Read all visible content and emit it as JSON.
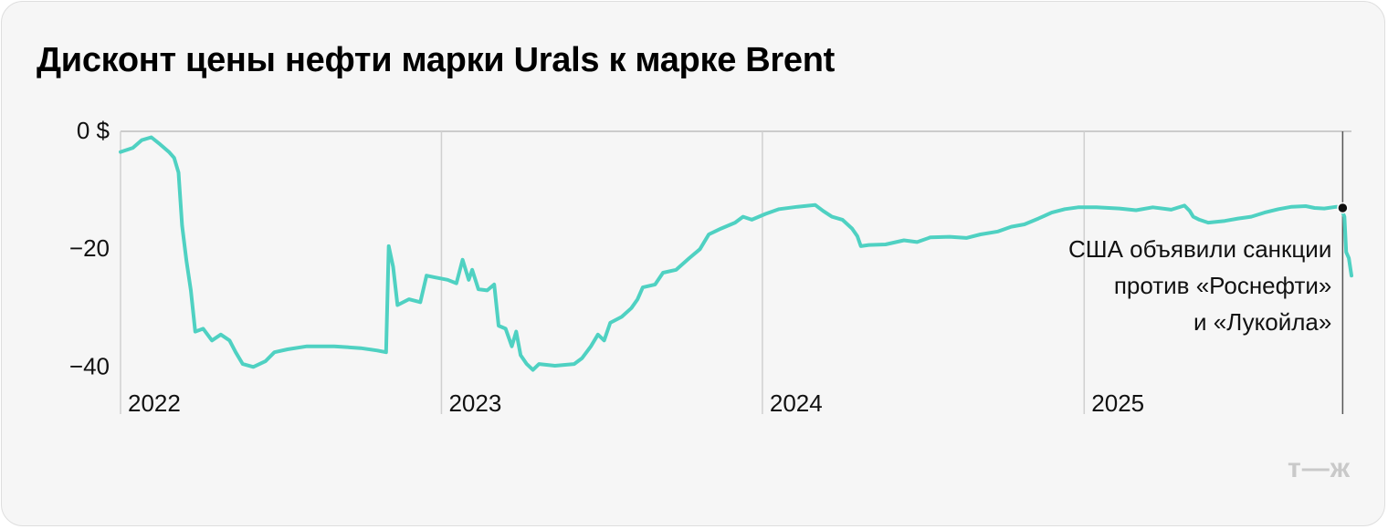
{
  "title": "Дисконт цены нефти марки Urals к марке Brent",
  "logo": "т—ж",
  "colors": {
    "line": "#4fd1c2",
    "grid": "#d0d0d0",
    "text": "#111111",
    "background": "#f6f6f6"
  },
  "chart_data": {
    "type": "line",
    "title": "Дисконт цены нефти марки Urals к марке Brent",
    "xlabel": "",
    "ylabel": "",
    "x_range": [
      "2022-01-01",
      "2025-11-01"
    ],
    "ylim": [
      -48,
      0
    ],
    "y_ticks": [
      {
        "value": 0,
        "label": "0 $"
      },
      {
        "value": -20,
        "label": "−20"
      },
      {
        "value": -40,
        "label": "−40"
      }
    ],
    "x_ticks": [
      {
        "value": "2022-01-01",
        "label": "2022"
      },
      {
        "value": "2023-01-01",
        "label": "2023"
      },
      {
        "value": "2024-01-01",
        "label": "2024"
      },
      {
        "value": "2025-01-01",
        "label": "2025"
      }
    ],
    "grid": "vertical",
    "series": [
      {
        "values": [
          [
            "2022-01-01",
            -3.5
          ],
          [
            "2022-01-15",
            -2.8
          ],
          [
            "2022-01-25",
            -1.5
          ],
          [
            "2022-02-05",
            -1.0
          ],
          [
            "2022-02-15",
            -2.2
          ],
          [
            "2022-02-25",
            -3.5
          ],
          [
            "2022-03-03",
            -4.5
          ],
          [
            "2022-03-08",
            -7.0
          ],
          [
            "2022-03-12",
            -16
          ],
          [
            "2022-03-17",
            -22
          ],
          [
            "2022-03-22",
            -27
          ],
          [
            "2022-03-27",
            -34
          ],
          [
            "2022-04-05",
            -33.5
          ],
          [
            "2022-04-15",
            -35.5
          ],
          [
            "2022-04-25",
            -34.5
          ],
          [
            "2022-05-05",
            -35.5
          ],
          [
            "2022-05-12",
            -37.5
          ],
          [
            "2022-05-20",
            -39.5
          ],
          [
            "2022-06-01",
            -40.0
          ],
          [
            "2022-06-15",
            -39.0
          ],
          [
            "2022-06-25",
            -37.5
          ],
          [
            "2022-07-10",
            -37.0
          ],
          [
            "2022-08-01",
            -36.5
          ],
          [
            "2022-09-01",
            -36.5
          ],
          [
            "2022-10-01",
            -36.8
          ],
          [
            "2022-10-20",
            -37.2
          ],
          [
            "2022-10-30",
            -37.5
          ],
          [
            "2022-11-02",
            -19.5
          ],
          [
            "2022-11-07",
            -23.0
          ],
          [
            "2022-11-12",
            -29.5
          ],
          [
            "2022-11-25",
            -28.5
          ],
          [
            "2022-12-08",
            -29.0
          ],
          [
            "2022-12-15",
            -24.5
          ],
          [
            "2022-12-25",
            -24.8
          ],
          [
            "2023-01-08",
            -25.2
          ],
          [
            "2023-01-18",
            -25.8
          ],
          [
            "2023-01-25",
            -21.8
          ],
          [
            "2023-02-01",
            -25.2
          ],
          [
            "2023-02-05",
            -23.5
          ],
          [
            "2023-02-12",
            -26.8
          ],
          [
            "2023-02-22",
            -27.0
          ],
          [
            "2023-03-02",
            -26.0
          ],
          [
            "2023-03-07",
            -33.0
          ],
          [
            "2023-03-15",
            -33.5
          ],
          [
            "2023-03-22",
            -36.5
          ],
          [
            "2023-03-27",
            -34.0
          ],
          [
            "2023-04-01",
            -38.0
          ],
          [
            "2023-04-08",
            -39.5
          ],
          [
            "2023-04-15",
            -40.5
          ],
          [
            "2023-04-22",
            -39.5
          ],
          [
            "2023-05-10",
            -39.8
          ],
          [
            "2023-06-01",
            -39.5
          ],
          [
            "2023-06-10",
            -38.5
          ],
          [
            "2023-06-20",
            -36.5
          ],
          [
            "2023-06-28",
            -34.5
          ],
          [
            "2023-07-05",
            -35.5
          ],
          [
            "2023-07-12",
            -32.5
          ],
          [
            "2023-07-25",
            -31.5
          ],
          [
            "2023-08-05",
            -30.0
          ],
          [
            "2023-08-12",
            -28.5
          ],
          [
            "2023-08-18",
            -26.5
          ],
          [
            "2023-09-01",
            -26.0
          ],
          [
            "2023-09-10",
            -24.0
          ],
          [
            "2023-09-25",
            -23.5
          ],
          [
            "2023-10-10",
            -21.5
          ],
          [
            "2023-10-22",
            -20.0
          ],
          [
            "2023-11-01",
            -17.5
          ],
          [
            "2023-11-15",
            -16.5
          ],
          [
            "2023-12-01",
            -15.5
          ],
          [
            "2023-12-10",
            -14.5
          ],
          [
            "2023-12-20",
            -15.0
          ],
          [
            "2024-01-05",
            -14.0
          ],
          [
            "2024-01-20",
            -13.2
          ],
          [
            "2024-02-10",
            -12.8
          ],
          [
            "2024-03-01",
            -12.5
          ],
          [
            "2024-03-10",
            -13.5
          ],
          [
            "2024-03-20",
            -14.5
          ],
          [
            "2024-04-01",
            -15.0
          ],
          [
            "2024-04-12",
            -16.5
          ],
          [
            "2024-04-18",
            -17.8
          ],
          [
            "2024-04-22",
            -19.5
          ],
          [
            "2024-05-01",
            -19.3
          ],
          [
            "2024-05-20",
            -19.2
          ],
          [
            "2024-06-10",
            -18.5
          ],
          [
            "2024-06-25",
            -18.8
          ],
          [
            "2024-07-10",
            -18.0
          ],
          [
            "2024-08-01",
            -17.9
          ],
          [
            "2024-08-20",
            -18.1
          ],
          [
            "2024-09-05",
            -17.5
          ],
          [
            "2024-09-25",
            -17.0
          ],
          [
            "2024-10-10",
            -16.2
          ],
          [
            "2024-10-25",
            -15.8
          ],
          [
            "2024-11-10",
            -14.8
          ],
          [
            "2024-11-25",
            -13.8
          ],
          [
            "2024-12-10",
            -13.2
          ],
          [
            "2024-12-25",
            -12.9
          ],
          [
            "2025-01-15",
            -12.9
          ],
          [
            "2025-02-10",
            -13.1
          ],
          [
            "2025-03-01",
            -13.4
          ],
          [
            "2025-03-20",
            -12.9
          ],
          [
            "2025-04-10",
            -13.3
          ],
          [
            "2025-04-25",
            -12.6
          ],
          [
            "2025-05-01",
            -13.5
          ],
          [
            "2025-05-05",
            -14.5
          ],
          [
            "2025-05-12",
            -15.0
          ],
          [
            "2025-05-22",
            -15.5
          ],
          [
            "2025-06-10",
            -15.2
          ],
          [
            "2025-06-25",
            -14.8
          ],
          [
            "2025-07-10",
            -14.5
          ],
          [
            "2025-07-25",
            -13.8
          ],
          [
            "2025-08-10",
            -13.2
          ],
          [
            "2025-08-25",
            -12.8
          ],
          [
            "2025-09-10",
            -12.7
          ],
          [
            "2025-09-20",
            -13.0
          ],
          [
            "2025-10-01",
            -13.1
          ],
          [
            "2025-10-15",
            -12.8
          ],
          [
            "2025-10-20",
            -13.0
          ],
          [
            "2025-10-24",
            -14.5
          ],
          [
            "2025-10-26",
            -20.5
          ],
          [
            "2025-10-29",
            -21.5
          ],
          [
            "2025-11-01",
            -24.5
          ]
        ]
      }
    ],
    "annotations": [
      {
        "x": "2025-10-22",
        "y": -13.0,
        "lines": [
          "США объявили санкции",
          "против «Роснефти»",
          "и «Лукойла»"
        ]
      }
    ]
  }
}
